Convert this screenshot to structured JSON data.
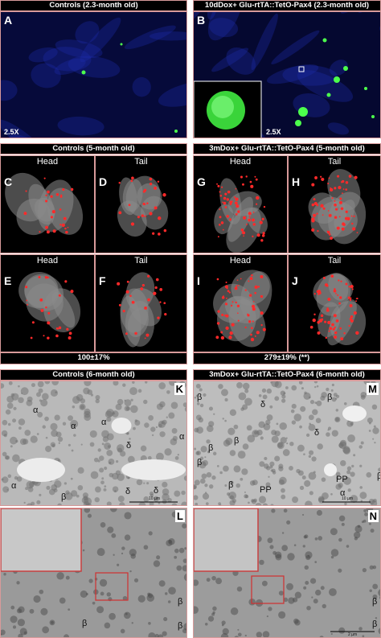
{
  "row1": {
    "left_header": "Controls (2.3-month old)",
    "right_header": "10dDox+ Glu-rtTA::TetO-Pax4 (2.3-month old)",
    "panel_a": {
      "label": "A",
      "magnification": "2.5X"
    },
    "panel_b": {
      "label": "B",
      "magnification": "2.5X"
    }
  },
  "row2": {
    "left_header": "Controls (5-month old)",
    "right_header": "3mDox+ Glu-rtTA::TetO-Pax4 (5-month old)",
    "panels": [
      {
        "label": "C",
        "region": "Head"
      },
      {
        "label": "D",
        "region": "Tail"
      },
      {
        "label": "G",
        "region": "Head"
      },
      {
        "label": "H",
        "region": "Tail"
      },
      {
        "label": "E",
        "region": "Head"
      },
      {
        "label": "F",
        "region": "Tail"
      },
      {
        "label": "I",
        "region": "Head"
      },
      {
        "label": "J",
        "region": "Tail"
      }
    ],
    "left_footer": "100±17%",
    "right_footer": "279±19% (**)"
  },
  "row3": {
    "left_header": "Controls (6-month old)",
    "right_header": "3mDox+ Glu-rtTA::TetO-Pax4 (6-month old)",
    "panel_k": {
      "label": "K",
      "cells": [
        "α",
        "α",
        "α",
        "δ",
        "α",
        "δ",
        "α",
        "β",
        "δ"
      ],
      "scale": "10 µm"
    },
    "panel_m": {
      "label": "M",
      "cells": [
        "β",
        "δ",
        "β",
        "β",
        "δ",
        "β",
        "PP",
        "β",
        "β",
        "PP",
        "α",
        "β"
      ],
      "scale": "10 µm"
    },
    "panel_l": {
      "label": "L",
      "cells": [
        "β",
        "β",
        "β"
      ]
    },
    "panel_n": {
      "label": "N",
      "cells": [
        "β",
        "β"
      ],
      "scale": "2 µm"
    }
  }
}
